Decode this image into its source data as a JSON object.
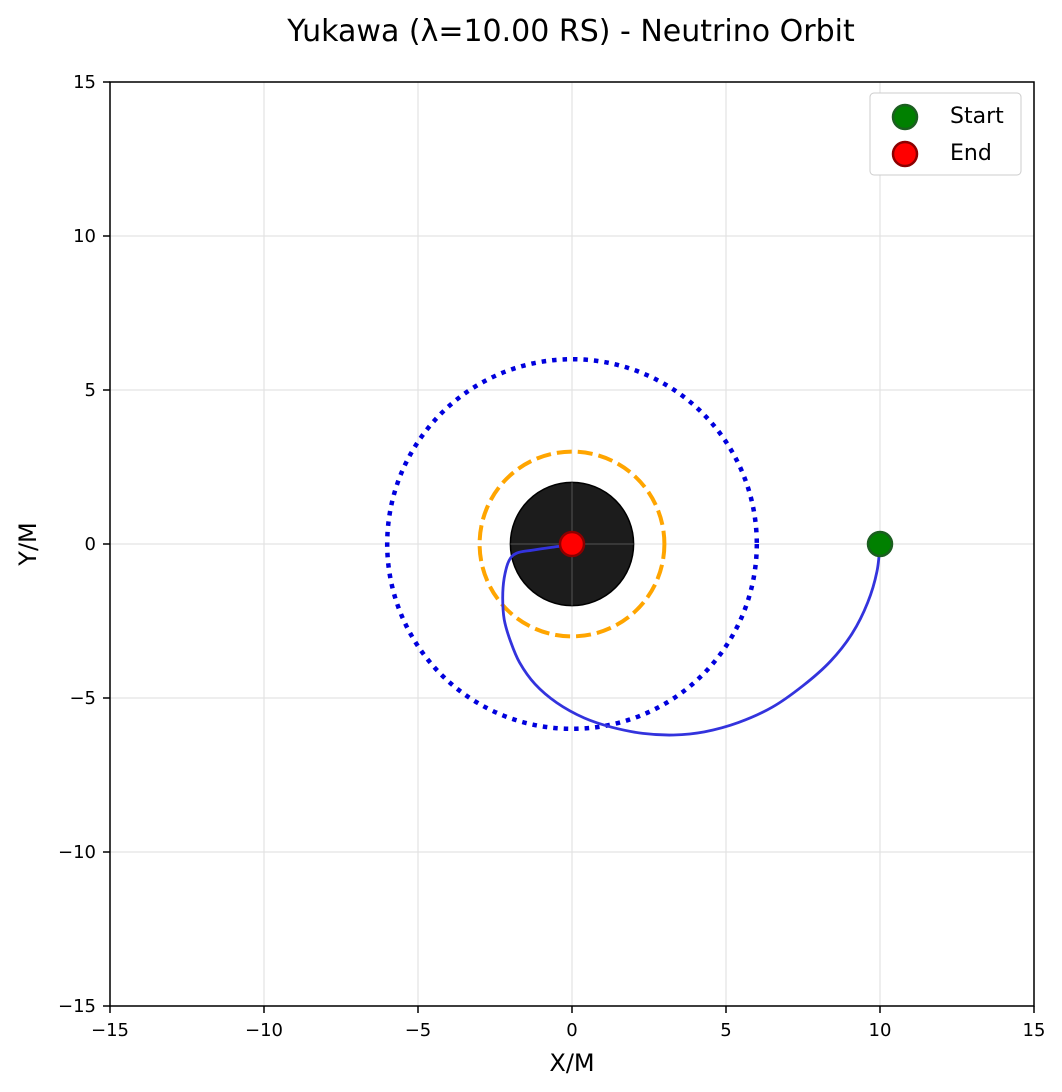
{
  "chart_data": {
    "type": "scatter",
    "title": "Yukawa (λ=10.00 RS) - Neutrino Orbit",
    "xlabel": "X/M",
    "ylabel": "Y/M",
    "xlim": [
      -15,
      15
    ],
    "ylim": [
      -15,
      15
    ],
    "xticks": [
      -15,
      -10,
      -5,
      0,
      5,
      10,
      15
    ],
    "yticks": [
      -15,
      -10,
      -5,
      0,
      5,
      10,
      15
    ],
    "xtick_labels": [
      "−15",
      "−10",
      "−5",
      "0",
      "5",
      "10",
      "15"
    ],
    "ytick_labels": [
      "−15",
      "−10",
      "−5",
      "0",
      "5",
      "10",
      "15"
    ],
    "grid": true,
    "legend_position": "top-right",
    "legend": [
      {
        "label": "Start",
        "color": "#008000",
        "edge": "#1b5e20"
      },
      {
        "label": "End",
        "color": "#ff0000",
        "edge": "#8b0000"
      }
    ],
    "black_hole": {
      "center": [
        0,
        0
      ],
      "radius": 2,
      "color": "#1c1c1c"
    },
    "circles": [
      {
        "name": "photon-sphere",
        "radius": 3,
        "color": "#ffa500",
        "style": "dashed"
      },
      {
        "name": "isco",
        "radius": 6,
        "color": "#0000dd",
        "style": "dotted"
      }
    ],
    "trajectory": {
      "color": "#3333dd",
      "x": [
        10.0,
        9.9,
        9.6,
        9.1,
        8.4,
        7.5,
        6.5,
        5.4,
        4.3,
        3.3,
        2.3,
        1.3,
        0.4,
        -0.5,
        -1.2,
        -1.7,
        -2.0,
        -2.2,
        -2.25,
        -2.2,
        -2.05,
        -1.8,
        -1.3,
        -0.6,
        -0.1,
        0.0
      ],
      "y": [
        0.0,
        -0.9,
        -1.9,
        -2.9,
        -3.8,
        -4.6,
        -5.3,
        -5.8,
        -6.1,
        -6.2,
        -6.15,
        -5.95,
        -5.65,
        -5.15,
        -4.55,
        -3.85,
        -3.15,
        -2.45,
        -1.75,
        -1.1,
        -0.55,
        -0.3,
        -0.2,
        -0.1,
        -0.03,
        0.0
      ]
    },
    "points": [
      {
        "name": "Start",
        "x": 10,
        "y": 0,
        "color": "#008000"
      },
      {
        "name": "End",
        "x": 0,
        "y": 0,
        "color": "#ff0000"
      }
    ]
  }
}
